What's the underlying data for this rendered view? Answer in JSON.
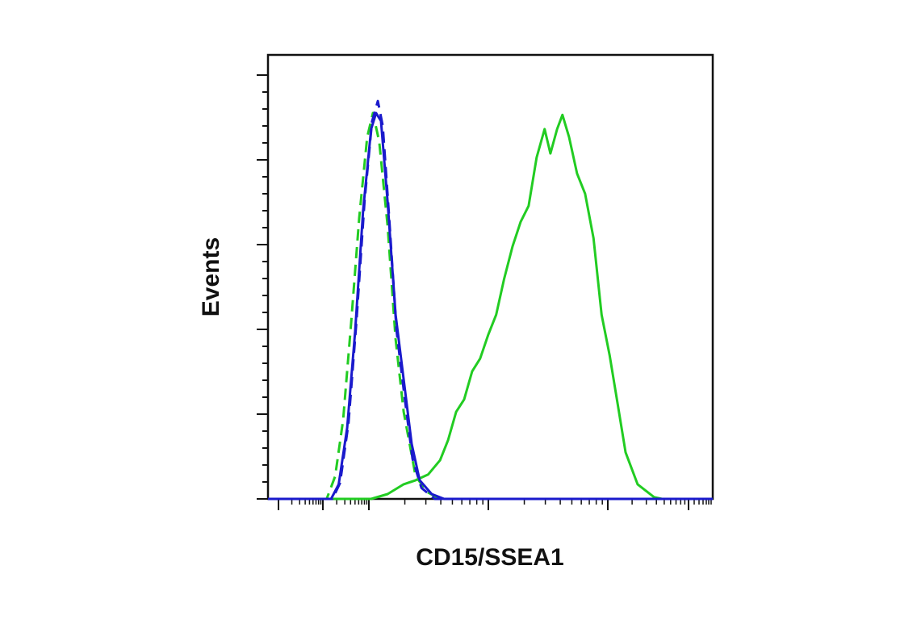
{
  "chart_data": {
    "type": "line",
    "x_label": "CD15/SSEA1",
    "y_label": "Events",
    "xlim": [
      0,
      100
    ],
    "ylim": [
      0,
      100
    ],
    "series": [
      {
        "color": "#22cc22",
        "dash": false,
        "x": [
          0,
          23.2,
          26.9,
          30.5,
          33.2,
          36,
          38.7,
          40.5,
          42.3,
          44.1,
          45.9,
          47.7,
          49.5,
          51.3,
          53.1,
          55,
          56.8,
          58.6,
          60.4,
          62.2,
          63.5,
          65,
          66.2,
          67.7,
          69.5,
          71.3,
          73.2,
          75,
          76.8,
          78.6,
          80.4,
          83.1,
          86.8,
          88.6,
          100
        ],
        "values": [
          0,
          0,
          1.1,
          3.3,
          4.2,
          5.5,
          8.7,
          13.3,
          19.6,
          22.4,
          28.7,
          31.6,
          36.9,
          41.5,
          49.6,
          56.9,
          62.4,
          66,
          76.9,
          83.3,
          77.8,
          83.3,
          86.5,
          81.5,
          73.3,
          68.7,
          58.7,
          41.5,
          32.4,
          21.5,
          10.5,
          3.3,
          0.4,
          0,
          0
        ]
      },
      {
        "color": "#22cc22",
        "dash": true,
        "x": [
          0,
          13.2,
          15.1,
          16.9,
          18.7,
          20.5,
          22.3,
          23.6,
          25,
          26.9,
          28.7,
          30.5,
          33.2,
          35.9,
          38.7,
          100
        ],
        "values": [
          0,
          0,
          5.1,
          17.8,
          39.6,
          63.3,
          81.5,
          86.9,
          80.5,
          61.5,
          36,
          19.6,
          5.1,
          1.5,
          0,
          0
        ]
      },
      {
        "color": "#1a1acc",
        "dash": false,
        "x": [
          0,
          14.2,
          15.9,
          17.8,
          19.6,
          21.4,
          23.2,
          24.3,
          25.4,
          26.9,
          28.7,
          30.5,
          32.3,
          34.1,
          36.8,
          39.6,
          100
        ],
        "values": [
          0,
          0,
          3.3,
          16,
          37.8,
          65.1,
          83.3,
          86.9,
          85.1,
          66.9,
          41.5,
          26.9,
          12.4,
          4.2,
          1.1,
          0,
          0
        ]
      },
      {
        "color": "#1a1acc",
        "dash": true,
        "x": [
          0,
          14.5,
          16.2,
          18.1,
          19.9,
          21.7,
          23.4,
          24.7,
          25.8,
          27.2,
          28.9,
          30.7,
          32.5,
          34.5,
          37.5,
          100
        ],
        "values": [
          0,
          0,
          3.6,
          17,
          40,
          67,
          85,
          89.6,
          84,
          64,
          38,
          23,
          9,
          2.5,
          0,
          0
        ]
      }
    ]
  }
}
